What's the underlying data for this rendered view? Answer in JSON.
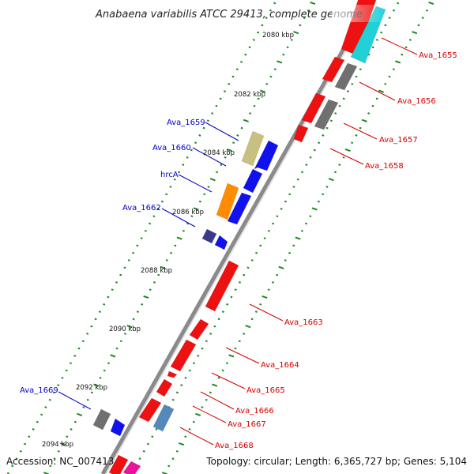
{
  "title": "Anabaena variabilis ATCC 29413, complete genome",
  "accession": "Accession: NC_007413",
  "topology": "Topology: circular; Length: 6,365,727 bp; Genes: 5,104",
  "kbp_labels": [
    "2080 kbp",
    "2082 kbp",
    "2084 kbp",
    "2086 kbp",
    "2088 kbp",
    "2090 kbp",
    "2092 kbp",
    "2094 kbp"
  ],
  "gene_labels": {
    "ava_1655": "Ava_1655",
    "ava_1656": "Ava_1656",
    "ava_1657": "Ava_1657",
    "ava_1658": "Ava_1658",
    "ava_1659": "Ava_1659",
    "ava_1660": "Ava_1660",
    "hrca": "hrcA",
    "ava_1662": "Ava_1662",
    "ava_1663": "Ava_1663",
    "ava_1664": "Ava_1664",
    "ava_1665": "Ava_1665",
    "ava_1666": "Ava_1666",
    "ava_1667": "Ava_1667",
    "ava_1668": "Ava_1668",
    "ava_1669": "Ava_1669"
  },
  "colors": {
    "forward_label": "#0000c8",
    "reverse_label": "#d40000",
    "backbone": "#8a8a8a",
    "tick": "#1e8a1e",
    "red_gene": "#ee1111",
    "blue_gene": "#1111ee",
    "grey_gene": "#707070",
    "cyan_gene": "#22d0d8",
    "orange_gene": "#ff8c00",
    "khaki_gene": "#c8c080",
    "steelblue_gene": "#5588bb",
    "navy_gene": "#3a3a8a",
    "magenta_gene": "#ee1199"
  }
}
